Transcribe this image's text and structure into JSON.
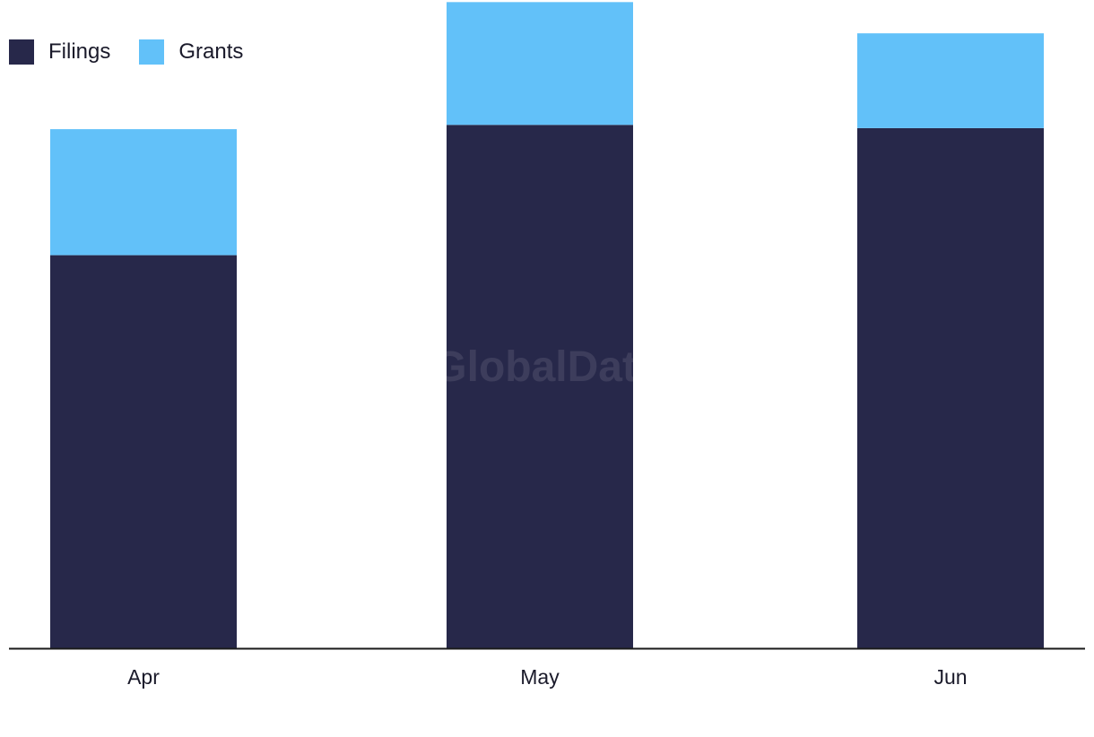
{
  "legend": {
    "items": [
      {
        "label": "Filings",
        "color": "#27284a"
      },
      {
        "label": "Grants",
        "color": "#62c1f9"
      }
    ]
  },
  "watermark": "GlobalData",
  "chart_data": {
    "type": "bar",
    "stacked": true,
    "categories": [
      "Apr",
      "May",
      "Jun"
    ],
    "series": [
      {
        "name": "Filings",
        "values": [
          365,
          486,
          483
        ],
        "color": "#27284a"
      },
      {
        "name": "Grants",
        "values": [
          117,
          114,
          88
        ],
        "color": "#62c1f9"
      }
    ],
    "ylim": [
      0,
      600
    ],
    "grid": false,
    "legend_position": "top-left",
    "title": "",
    "xlabel": "",
    "ylabel": ""
  }
}
